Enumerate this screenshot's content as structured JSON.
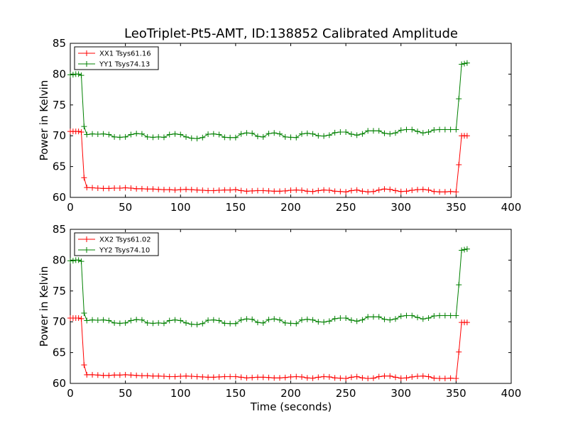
{
  "figure": {
    "title": "LeoTriplet-Pt5-AMT, ID:138852 Calibrated Amplitude",
    "xlabel": "Time (seconds)"
  },
  "chart_data": [
    {
      "type": "line",
      "title": "LeoTriplet-Pt5-AMT, ID:138852 Calibrated Amplitude",
      "xlabel": "",
      "ylabel": "Power in Kelvin",
      "xlim": [
        0,
        400
      ],
      "ylim": [
        60,
        85
      ],
      "xticks": [
        0,
        50,
        100,
        150,
        200,
        250,
        300,
        350,
        400
      ],
      "yticks": [
        60,
        65,
        70,
        75,
        80,
        85
      ],
      "legend_position": "upper-left",
      "grid": false,
      "x": [
        0,
        2.5,
        5,
        7.5,
        10,
        12.5,
        15,
        20,
        25,
        30,
        35,
        40,
        45,
        50,
        55,
        60,
        65,
        70,
        75,
        80,
        85,
        90,
        95,
        100,
        105,
        110,
        115,
        120,
        125,
        130,
        135,
        140,
        145,
        150,
        155,
        160,
        165,
        170,
        175,
        180,
        185,
        190,
        195,
        200,
        205,
        210,
        215,
        220,
        225,
        230,
        235,
        240,
        245,
        250,
        255,
        260,
        265,
        270,
        275,
        280,
        285,
        290,
        295,
        300,
        305,
        310,
        315,
        320,
        325,
        330,
        335,
        340,
        345,
        350,
        352.5,
        355,
        357.5,
        360
      ],
      "series": [
        {
          "name": "XX1 Tsys61.16",
          "color": "#ff0000",
          "values": [
            70.7,
            70.7,
            70.7,
            70.7,
            70.6,
            63.2,
            61.6,
            61.55,
            61.5,
            61.45,
            61.45,
            61.5,
            61.5,
            61.55,
            61.5,
            61.4,
            61.4,
            61.35,
            61.35,
            61.3,
            61.25,
            61.25,
            61.2,
            61.25,
            61.3,
            61.25,
            61.2,
            61.15,
            61.1,
            61.1,
            61.15,
            61.2,
            61.2,
            61.25,
            61.1,
            61.0,
            61.05,
            61.1,
            61.1,
            61.05,
            61.0,
            61.0,
            61.05,
            61.15,
            61.2,
            61.15,
            61.0,
            60.95,
            61.1,
            61.2,
            61.15,
            61.0,
            60.95,
            60.9,
            61.1,
            61.2,
            61.0,
            60.9,
            60.95,
            61.2,
            61.35,
            61.3,
            61.1,
            60.95,
            61.0,
            61.15,
            61.25,
            61.3,
            61.2,
            60.95,
            60.9,
            60.9,
            60.95,
            60.9,
            65.3,
            70.0,
            70.0,
            70.0
          ]
        },
        {
          "name": "YY1 Tsys74.13",
          "color": "#008000",
          "values": [
            79.9,
            79.9,
            80.0,
            80.0,
            79.8,
            71.5,
            70.2,
            70.3,
            70.25,
            70.3,
            70.2,
            69.8,
            69.75,
            69.8,
            70.2,
            70.35,
            70.3,
            69.8,
            69.75,
            69.8,
            69.75,
            70.2,
            70.3,
            70.2,
            69.8,
            69.6,
            69.55,
            69.7,
            70.25,
            70.3,
            70.2,
            69.75,
            69.7,
            69.7,
            70.3,
            70.45,
            70.4,
            69.9,
            69.8,
            70.35,
            70.45,
            70.3,
            69.8,
            69.75,
            69.7,
            70.3,
            70.4,
            70.3,
            70.0,
            69.95,
            70.1,
            70.5,
            70.6,
            70.6,
            70.25,
            70.1,
            70.3,
            70.8,
            70.8,
            70.8,
            70.4,
            70.3,
            70.45,
            70.9,
            71.0,
            71.0,
            70.7,
            70.45,
            70.6,
            70.95,
            71.0,
            71.0,
            71.0,
            71.0,
            76.0,
            81.6,
            81.7,
            81.8
          ]
        }
      ]
    },
    {
      "type": "line",
      "title": "",
      "xlabel": "Time (seconds)",
      "ylabel": "Power in Kelvin",
      "xlim": [
        0,
        400
      ],
      "ylim": [
        60,
        85
      ],
      "xticks": [
        0,
        50,
        100,
        150,
        200,
        250,
        300,
        350,
        400
      ],
      "yticks": [
        60,
        65,
        70,
        75,
        80,
        85
      ],
      "legend_position": "upper-left",
      "grid": false,
      "x": [
        0,
        2.5,
        5,
        7.5,
        10,
        12.5,
        15,
        20,
        25,
        30,
        35,
        40,
        45,
        50,
        55,
        60,
        65,
        70,
        75,
        80,
        85,
        90,
        95,
        100,
        105,
        110,
        115,
        120,
        125,
        130,
        135,
        140,
        145,
        150,
        155,
        160,
        165,
        170,
        175,
        180,
        185,
        190,
        195,
        200,
        205,
        210,
        215,
        220,
        225,
        230,
        235,
        240,
        245,
        250,
        255,
        260,
        265,
        270,
        275,
        280,
        285,
        290,
        295,
        300,
        305,
        310,
        315,
        320,
        325,
        330,
        335,
        340,
        345,
        350,
        352.5,
        355,
        357.5,
        360
      ],
      "series": [
        {
          "name": "XX2 Tsys61.02",
          "color": "#ff0000",
          "values": [
            70.6,
            70.6,
            70.6,
            70.6,
            70.5,
            63.0,
            61.4,
            61.4,
            61.35,
            61.3,
            61.3,
            61.35,
            61.35,
            61.4,
            61.35,
            61.3,
            61.25,
            61.25,
            61.2,
            61.2,
            61.15,
            61.1,
            61.1,
            61.15,
            61.2,
            61.15,
            61.1,
            61.05,
            61.0,
            61.0,
            61.05,
            61.1,
            61.1,
            61.1,
            61.0,
            60.9,
            60.95,
            61.0,
            61.0,
            60.95,
            60.9,
            60.9,
            60.95,
            61.05,
            61.1,
            61.05,
            60.9,
            60.85,
            61.0,
            61.1,
            61.05,
            60.9,
            60.85,
            60.8,
            61.0,
            61.1,
            60.9,
            60.8,
            60.85,
            61.1,
            61.2,
            61.2,
            61.0,
            60.85,
            60.9,
            61.05,
            61.15,
            61.2,
            61.1,
            60.85,
            60.8,
            60.8,
            60.85,
            60.8,
            65.1,
            69.9,
            69.9,
            69.9
          ]
        },
        {
          "name": "YY2 Tsys74.10",
          "color": "#008000",
          "values": [
            79.9,
            79.9,
            80.0,
            80.0,
            79.8,
            71.4,
            70.2,
            70.3,
            70.25,
            70.3,
            70.2,
            69.8,
            69.75,
            69.8,
            70.2,
            70.35,
            70.3,
            69.8,
            69.75,
            69.8,
            69.75,
            70.2,
            70.3,
            70.2,
            69.8,
            69.6,
            69.55,
            69.7,
            70.25,
            70.3,
            70.2,
            69.75,
            69.7,
            69.7,
            70.3,
            70.45,
            70.4,
            69.9,
            69.8,
            70.35,
            70.45,
            70.3,
            69.8,
            69.75,
            69.7,
            70.3,
            70.4,
            70.3,
            70.0,
            69.95,
            70.1,
            70.5,
            70.6,
            70.6,
            70.25,
            70.1,
            70.3,
            70.8,
            70.8,
            70.8,
            70.4,
            70.3,
            70.45,
            70.9,
            71.0,
            71.0,
            70.7,
            70.45,
            70.6,
            70.95,
            71.0,
            71.0,
            71.0,
            71.0,
            76.0,
            81.6,
            81.7,
            81.8
          ]
        }
      ]
    }
  ]
}
